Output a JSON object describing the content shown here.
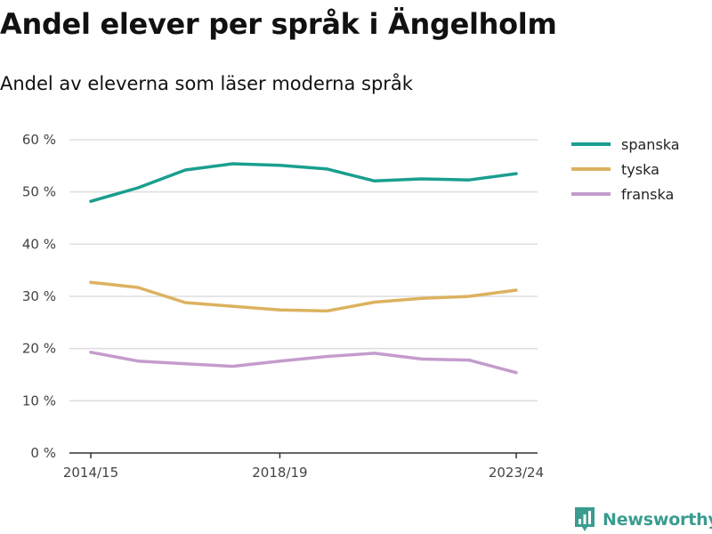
{
  "title": "Andel elever per språk i Ängelholm",
  "subtitle": "Andel av eleverna som läser moderna språk",
  "logo_text": "Newsworthy",
  "chart_data": {
    "type": "line",
    "x": [
      "2014/15",
      "2015/16",
      "2016/17",
      "2017/18",
      "2018/19",
      "2019/20",
      "2020/21",
      "2021/22",
      "2022/23",
      "2023/24"
    ],
    "x_tick_labels": [
      "2014/15",
      "2018/19",
      "2023/24"
    ],
    "y_tick_labels": [
      "0 %",
      "10 %",
      "20 %",
      "30 %",
      "40 %",
      "50 %",
      "60 %"
    ],
    "ylim": [
      0,
      60
    ],
    "y_unit": "%",
    "grid": true,
    "legend_position": "right",
    "series": [
      {
        "name": "spanska",
        "color": "#1a9e8f",
        "values": [
          48.2,
          50.8,
          54.2,
          55.4,
          55.1,
          54.4,
          52.1,
          52.5,
          52.3,
          53.5
        ]
      },
      {
        "name": "tyska",
        "color": "#dcb260",
        "values": [
          32.7,
          31.7,
          28.8,
          28.1,
          27.4,
          27.2,
          28.9,
          29.6,
          30.0,
          31.2
        ]
      },
      {
        "name": "franska",
        "color": "#c49ccc",
        "values": [
          19.3,
          17.6,
          17.1,
          16.6,
          17.6,
          18.5,
          19.1,
          18.0,
          17.8,
          15.4
        ]
      }
    ]
  }
}
